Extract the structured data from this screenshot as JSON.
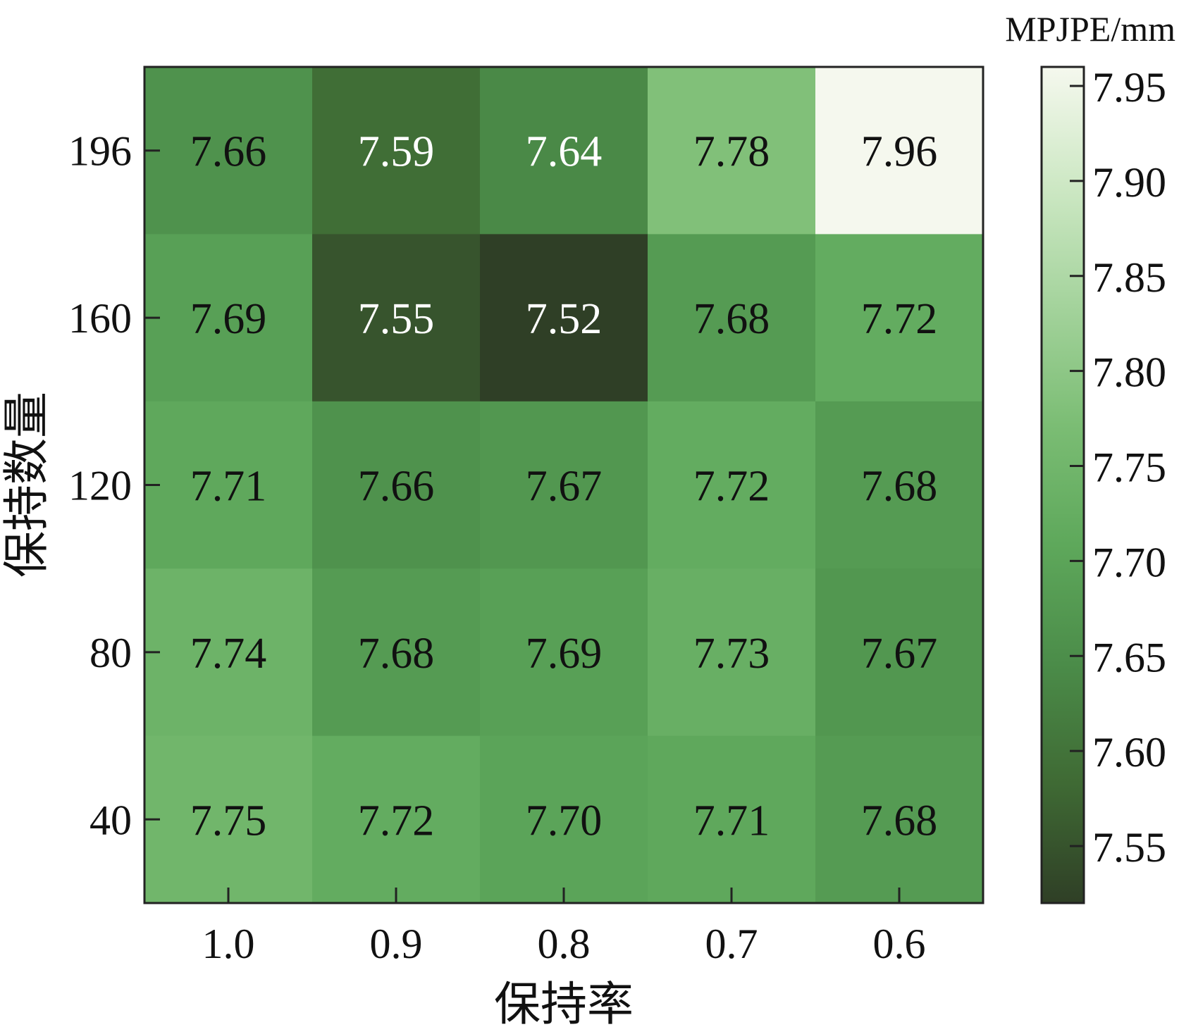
{
  "chart_data": {
    "type": "heatmap",
    "title": "",
    "xlabel": "保持率",
    "ylabel": "保持数量",
    "x_categories": [
      "1.0",
      "0.9",
      "0.8",
      "0.7",
      "0.6"
    ],
    "y_categories": [
      "196",
      "160",
      "120",
      "80",
      "40"
    ],
    "values": [
      [
        7.66,
        7.59,
        7.64,
        7.78,
        7.96
      ],
      [
        7.69,
        7.55,
        7.52,
        7.68,
        7.72
      ],
      [
        7.71,
        7.66,
        7.67,
        7.72,
        7.68
      ],
      [
        7.74,
        7.68,
        7.69,
        7.73,
        7.67
      ],
      [
        7.75,
        7.72,
        7.7,
        7.71,
        7.68
      ]
    ],
    "value_labels": [
      [
        "7.66",
        "7.59",
        "7.64",
        "7.78",
        "7.96"
      ],
      [
        "7.69",
        "7.55",
        "7.52",
        "7.68",
        "7.72"
      ],
      [
        "7.71",
        "7.66",
        "7.67",
        "7.72",
        "7.68"
      ],
      [
        "7.74",
        "7.68",
        "7.69",
        "7.73",
        "7.67"
      ],
      [
        "7.75",
        "7.72",
        "7.70",
        "7.71",
        "7.68"
      ]
    ],
    "colorbar": {
      "label": "MPJPE/mm",
      "min": 7.52,
      "max": 7.96,
      "ticks": [
        "7.55",
        "7.60",
        "7.65",
        "7.70",
        "7.75",
        "7.80",
        "7.85",
        "7.90",
        "7.95"
      ],
      "tick_values": [
        7.55,
        7.6,
        7.65,
        7.7,
        7.75,
        7.8,
        7.85,
        7.9,
        7.95
      ],
      "colormap": "Greens",
      "colormap_stops": [
        "#2f3f26",
        "#3f6a34",
        "#4b8c49",
        "#5ea85b",
        "#7bbd74",
        "#a4d39c",
        "#cde8c4",
        "#f5f8ee"
      ]
    },
    "grid": false,
    "legend": "right"
  }
}
